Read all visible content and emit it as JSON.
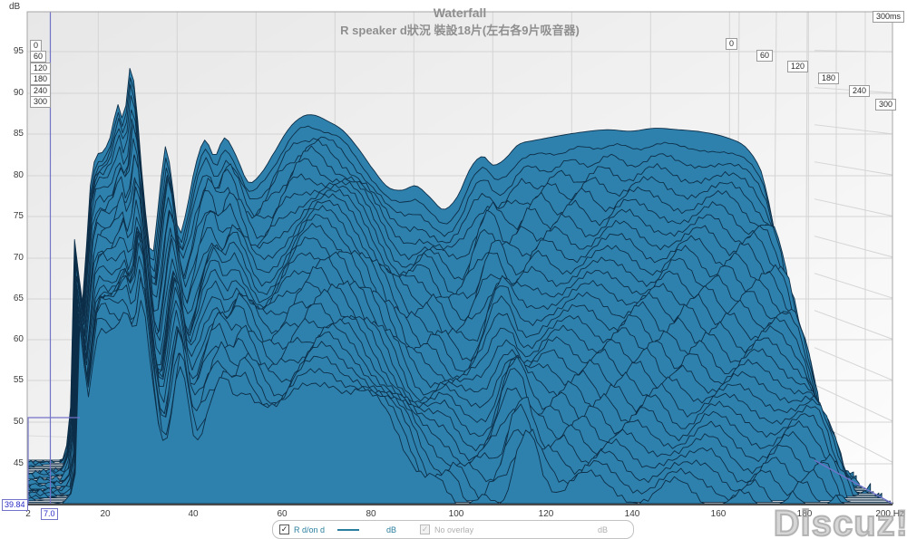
{
  "header": {
    "title": "Waterfall",
    "subtitle": "R speaker d狀況  裝設18片(左右各9片吸音器)"
  },
  "axes": {
    "db_unit": "dB",
    "db_ticks": [
      95,
      90,
      85,
      80,
      75,
      70,
      65,
      60,
      55,
      50,
      45
    ],
    "freq_ticks": [
      2,
      20,
      40,
      60,
      80,
      100,
      120,
      140,
      160,
      180
    ],
    "freq_axis_end_label": "200 Hz",
    "time_axis_title": "300ms",
    "time_ticks_left": [
      0,
      60,
      120,
      180,
      240,
      300
    ],
    "time_ticks_right": [
      0,
      60,
      120,
      180,
      240,
      300
    ]
  },
  "cursor": {
    "freq": "7.0",
    "db_bottom": "39.84"
  },
  "legend": {
    "entries": [
      {
        "checked": true,
        "label": "R d/on d",
        "unit": "dB",
        "enabled": true
      },
      {
        "checked": true,
        "label": "No overlay",
        "unit": "dB",
        "enabled": false
      }
    ]
  },
  "watermark": "Discuz!",
  "colors": {
    "surface_fill": "#2e81ad",
    "surface_stroke": "#0d2e48",
    "grid": "#d4d4d4",
    "cursor": "#7272c8",
    "legend_accent": "#2a7f9e",
    "title_text": "#8f8f8f"
  },
  "chart_data": {
    "type": "area",
    "subtype": "waterfall-spectral-decay",
    "title": "Waterfall",
    "subtitle": "R speaker d狀況  裝設18片(左右各9片吸音器)",
    "xlabel": "Hz",
    "ylabel": "dB",
    "zlabel": "ms",
    "x_scale": "linear",
    "xlim": [
      2,
      200
    ],
    "ylim": [
      39.84,
      100
    ],
    "time_window_ms": [
      0,
      300
    ],
    "num_slices": 31,
    "slice_step_ms": 10,
    "legend_position": "bottom-center",
    "grid": true,
    "series_name": "R d/on d",
    "spectrum_t0": {
      "freq_hz": [
        2,
        8,
        11,
        13,
        14.3,
        15.4,
        16.5,
        18,
        19.5,
        21,
        23,
        25,
        26.5,
        28.2,
        29.8,
        31.5,
        33.5,
        35,
        37,
        38.8,
        40.5,
        42.5,
        44.5,
        47,
        49.5,
        52,
        55,
        58,
        61,
        64,
        68,
        71.5,
        74.5,
        78,
        82,
        86,
        90,
        93.5,
        97,
        100.5,
        104,
        107.5,
        111,
        114.5,
        117.5,
        120,
        123,
        126.5,
        131,
        137,
        143,
        149,
        155,
        161,
        167,
        173,
        179,
        184,
        188,
        191,
        194,
        196.5,
        198.5,
        200
      ],
      "spl_db": [
        39.8,
        39.8,
        40,
        47,
        73.5,
        60,
        65,
        77,
        81,
        81.5,
        83.5,
        88,
        86,
        93.2,
        87,
        76,
        67.5,
        73,
        82.3,
        77,
        70.5,
        74,
        79.5,
        83.2,
        81,
        83.5,
        81,
        77.5,
        78.5,
        81,
        84.5,
        86.3,
        86.6,
        85.8,
        84.5,
        82,
        79,
        76.8,
        76.4,
        77,
        75.5,
        73.8,
        75.5,
        79.5,
        81,
        79.8,
        80.6,
        82.6,
        83.2,
        83.8,
        84.3,
        84.6,
        84.4,
        84.8,
        84.6,
        84.3,
        83.6,
        82.3,
        79,
        72,
        62,
        50,
        44,
        41.5
      ],
      "decay_db_over_300ms": [
        0,
        0,
        0,
        4,
        10,
        8,
        10,
        16,
        19,
        20,
        22,
        26,
        26,
        28,
        27,
        24,
        21,
        23,
        26,
        24,
        22,
        24,
        27,
        29,
        28,
        29,
        28,
        26,
        27,
        28,
        30,
        31,
        32,
        32,
        33,
        33,
        33,
        34,
        35,
        36,
        36,
        34,
        34,
        33,
        34,
        36,
        38,
        40,
        41,
        42,
        43,
        43,
        44,
        44,
        45,
        45,
        44,
        43,
        40,
        35,
        26,
        14,
        6,
        2
      ]
    }
  }
}
